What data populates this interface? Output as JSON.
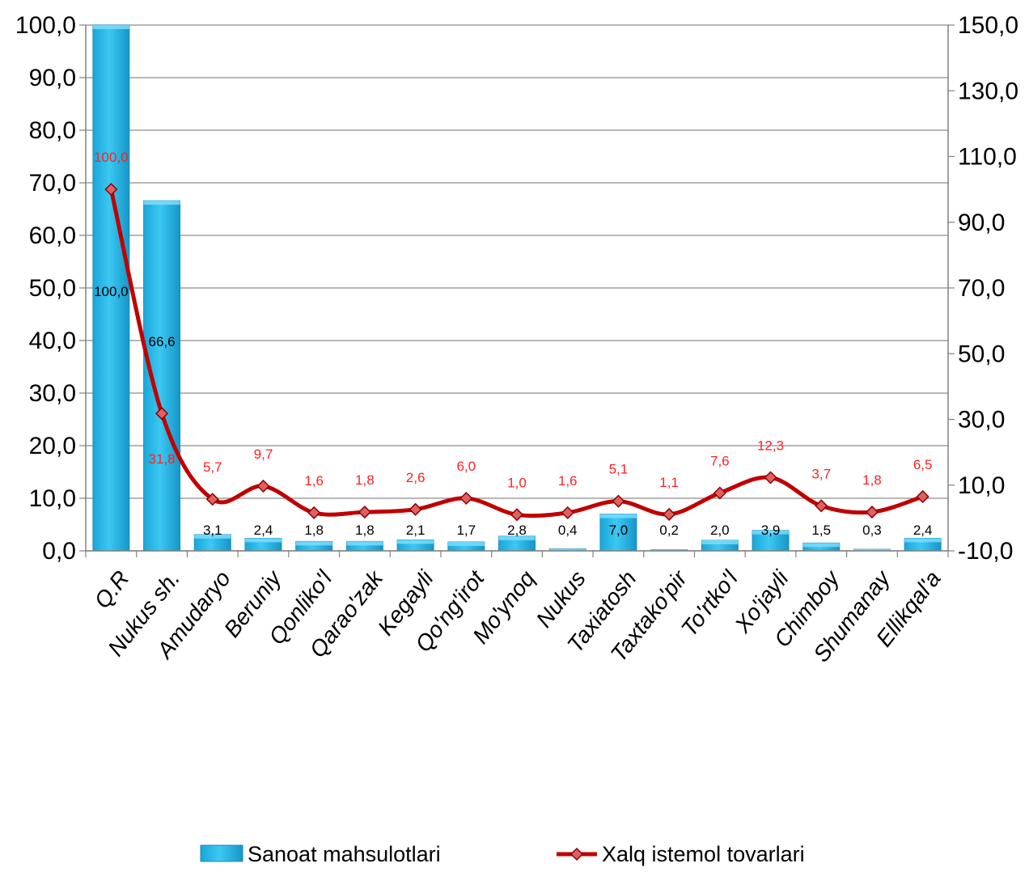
{
  "chart_data": {
    "type": "bar",
    "categories": [
      "Q.R",
      "Nukus sh.",
      "Amudaryo",
      "Beruniy",
      "Qonliko'l",
      "Qarao'zak",
      "Kegayli",
      "Qo'ng'irot",
      "Mo'ynoq",
      "Nukus",
      "Taxiatosh",
      "Taxtako'pir",
      "To'rtko'l",
      "Xo'jayli",
      "Chimboy",
      "Shumanay",
      "Ellikqal'a"
    ],
    "series": [
      {
        "name": "Sanoat mahsulotlari",
        "type": "bar",
        "axis": "left",
        "color": "#29b6e6",
        "values": [
          100.0,
          66.6,
          3.1,
          2.4,
          1.8,
          1.8,
          2.1,
          1.7,
          2.8,
          0.4,
          7.0,
          0.2,
          2.0,
          3.9,
          1.5,
          0.3,
          2.4
        ],
        "labels": [
          "100,0",
          "66,6",
          "3,1",
          "2,4",
          "1,8",
          "1,8",
          "2,1",
          "1,7",
          "2,8",
          "0,4",
          "7,0",
          "0,2",
          "2,0",
          "3,9",
          "1,5",
          "0,3",
          "2,4"
        ]
      },
      {
        "name": "Xalq istemol tovarlari",
        "type": "line",
        "axis": "right",
        "color": "#c00000",
        "label_color": "#ff2020",
        "values": [
          100.0,
          31.8,
          5.7,
          9.7,
          1.6,
          1.8,
          2.6,
          6.0,
          1.0,
          1.6,
          5.1,
          1.1,
          7.6,
          12.3,
          3.7,
          1.8,
          6.5
        ],
        "labels": [
          "100,0",
          "31,8",
          "5,7",
          "9,7",
          "1,6",
          "1,8",
          "2,6",
          "6,0",
          "1,0",
          "1,6",
          "5,1",
          "1,1",
          "7,6",
          "12,3",
          "3,7",
          "1,8",
          "6,5"
        ]
      }
    ],
    "y_left": {
      "min": 0,
      "max": 100,
      "ticks": [
        "0,0",
        "10,0",
        "20,0",
        "30,0",
        "40,0",
        "50,0",
        "60,0",
        "70,0",
        "80,0",
        "90,0",
        "100,0"
      ]
    },
    "y_right": {
      "min": -10,
      "max": 150,
      "ticks": [
        "-10,0",
        "10,0",
        "30,0",
        "50,0",
        "70,0",
        "90,0",
        "110,0",
        "130,0",
        "150,0"
      ]
    },
    "grid": true,
    "legend_position": "bottom"
  }
}
